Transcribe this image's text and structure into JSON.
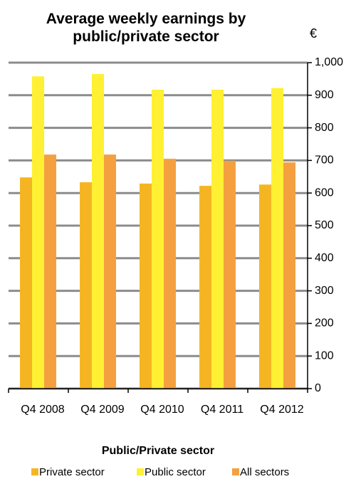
{
  "chart_data": {
    "type": "bar",
    "title": "Average weekly earnings by public/private sector",
    "y_axis_label": "€",
    "legend_title": "Public/Private sector",
    "categories": [
      "Q4 2008",
      "Q4 2009",
      "Q4 2010",
      "Q4 2011",
      "Q4 2012"
    ],
    "series": [
      {
        "name": "Private sector",
        "color": "#F5B523",
        "values": [
          648,
          633,
          629,
          622,
          626
        ]
      },
      {
        "name": "Public sector",
        "color": "#FFF033",
        "values": [
          958,
          965,
          917,
          917,
          922
        ]
      },
      {
        "name": "All sectors",
        "color": "#F4A040",
        "values": [
          718,
          718,
          705,
          699,
          694
        ]
      }
    ],
    "ylim": [
      0,
      1000
    ],
    "yticks": [
      0,
      100,
      200,
      300,
      400,
      500,
      600,
      700,
      800,
      900,
      {
        "value": 1000,
        "label": "1,000"
      }
    ],
    "grid": true
  }
}
